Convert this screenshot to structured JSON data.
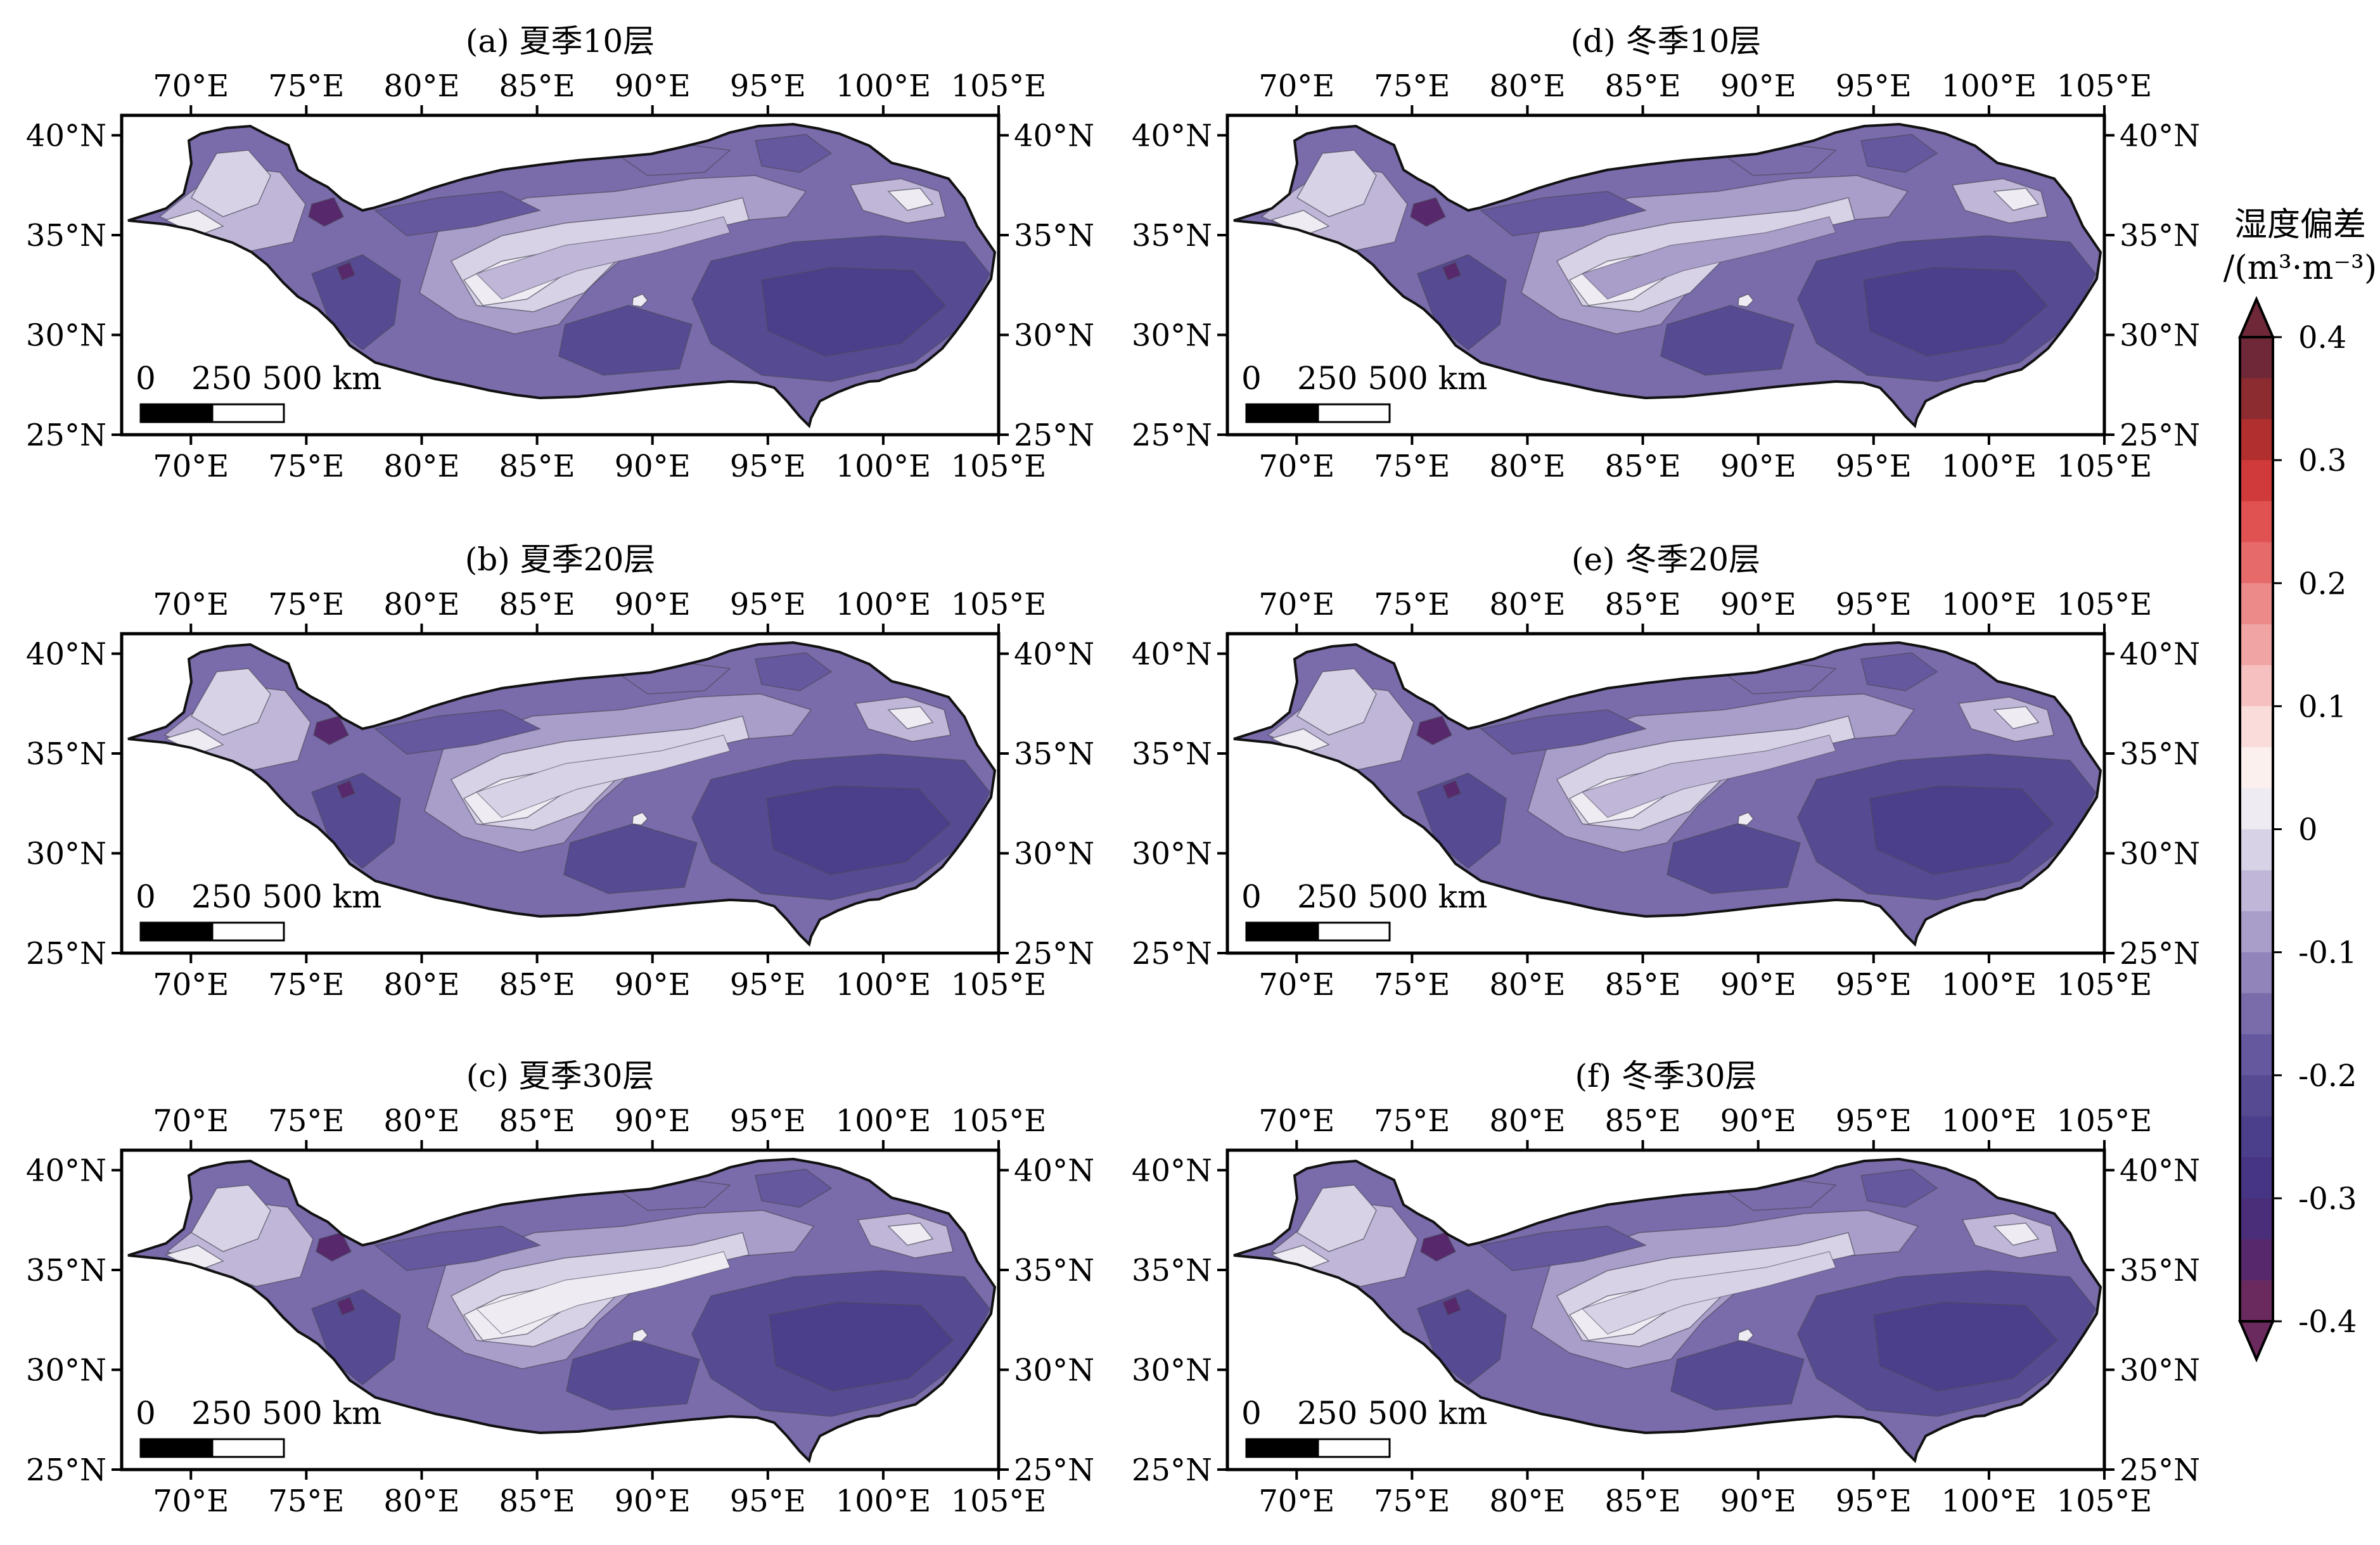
{
  "panels": [
    {
      "id": "a",
      "title": "(a) 夏季10层"
    },
    {
      "id": "b",
      "title": "(b) 夏季20层"
    },
    {
      "id": "c",
      "title": "(c) 夏季30层"
    },
    {
      "id": "d",
      "title": "(d) 冬季10层"
    },
    {
      "id": "e",
      "title": "(e) 冬季20层"
    },
    {
      "id": "f",
      "title": "(f) 冬季30层"
    }
  ],
  "lon_ticks": [
    "70°E",
    "75°E",
    "80°E",
    "85°E",
    "90°E",
    "95°E",
    "100°E",
    "105°E"
  ],
  "lat_ticks": [
    "40°N",
    "35°N",
    "30°N",
    "25°N"
  ],
  "scalebar": {
    "label_0": "0",
    "label_mid": "250 500 km"
  },
  "colorbar": {
    "title_line1": "湿度偏差",
    "title_line2": "/(m³·m⁻³)",
    "tick_labels": [
      "0.4",
      "0.3",
      "0.2",
      "0.1",
      "0",
      "-0.1",
      "-0.2",
      "-0.3",
      "-0.4"
    ],
    "colors": [
      "#6e2838",
      "#8c2c30",
      "#b22f2f",
      "#d03a3a",
      "#e05252",
      "#e66a6a",
      "#ec8a8a",
      "#f0a4a4",
      "#f5c0bf",
      "#fadcda",
      "#fcf0ef",
      "#eeebf3",
      "#d8d2e6",
      "#c0b7d8",
      "#a99dc9",
      "#9184ba",
      "#7a6bab",
      "#66589e",
      "#564a93",
      "#4b3f8b",
      "#463584",
      "#4a2e7a",
      "#57286c",
      "#6a2a5e"
    ]
  },
  "extent": {
    "lon_min": 67,
    "lon_max": 105,
    "lat_min": 25,
    "lat_max": 41
  }
}
